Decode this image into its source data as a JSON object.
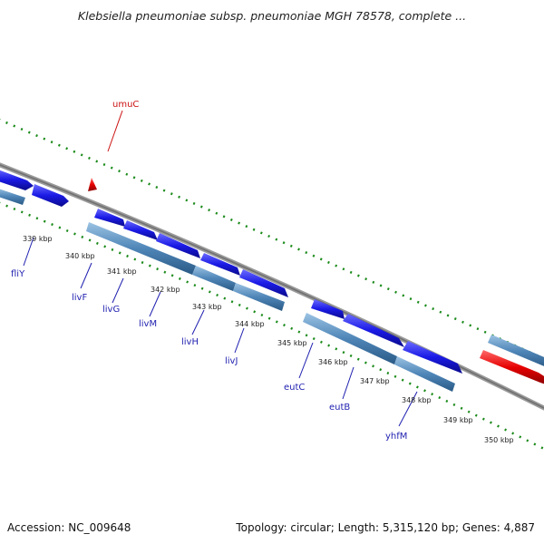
{
  "title": "Klebsiella pneumoniae subsp. pneumoniae MGH 78578, complete ...",
  "footer": {
    "accession_label": "Accession: NC_009648",
    "summary": "Topology: circular; Length: 5,315,120 bp; Genes: 4,887"
  },
  "colors": {
    "forward_gene": "#1a1ae6",
    "reverse_gene": "#4682b4",
    "highlight_gene": "#e60000",
    "backbone": "#888888",
    "gc_track": "#1a8a1a",
    "label_blue": "#1f1fb0",
    "label_red": "#cc1111"
  },
  "ruler": [
    "339 kbp",
    "340 kbp",
    "341 kbp",
    "342 kbp",
    "343 kbp",
    "344 kbp",
    "345 kbp",
    "346 kbp",
    "347 kbp",
    "348 kbp",
    "349 kbp",
    "350 kbp"
  ],
  "gene_labels": [
    "umuC",
    "fliY",
    "livF",
    "livG",
    "livM",
    "livH",
    "livJ",
    "eutC",
    "eutB",
    "yhfM"
  ]
}
